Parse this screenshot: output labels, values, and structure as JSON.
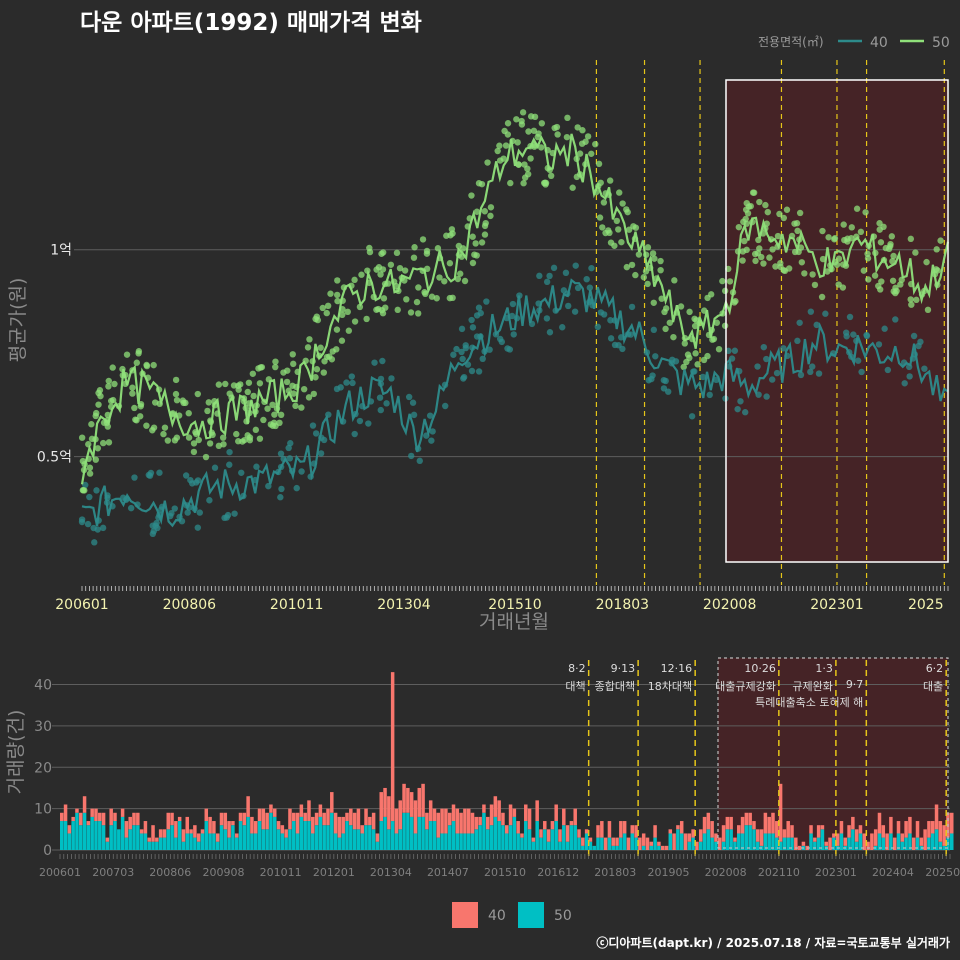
{
  "title": "다운 아파트(1992) 매매가격 변화",
  "footer": "ⓒ디아파트(dapt.kr) / 2025.07.18 / 자료=국토교통부 실거래가",
  "colors": {
    "background": "#2b2b2b",
    "series_40": "#2d8b8b",
    "series_50": "#8fe07a",
    "bar_40": "#f8766d",
    "bar_50": "#00bfc4",
    "policy_line": "#e6c619",
    "highlight_fill": "#4a2226"
  },
  "chart_data": [
    {
      "type": "line",
      "title": "다운 아파트(1992) 매매가격 변화",
      "xlabel": "거래년월",
      "ylabel": "평균가(원)",
      "x_tick_labels": [
        "200601",
        "200806",
        "201011",
        "201304",
        "201510",
        "201803",
        "202008",
        "202301",
        "2025"
      ],
      "y_tick_labels": [
        "0.5억",
        "1억"
      ],
      "y_ticks": [
        0.5,
        1.0
      ],
      "ylim": [
        0.19,
        1.41
      ],
      "xlim": [
        "2006-01",
        "2025-07"
      ],
      "grid": true,
      "legend": {
        "title": "전용면적(㎡)",
        "position": "top-right",
        "entries": [
          "40",
          "50"
        ]
      },
      "series": [
        {
          "name": "40",
          "x": [
            "2006-01",
            "2007-01",
            "2008-01",
            "2009-01",
            "2010-01",
            "2011-01",
            "2011-07",
            "2012-01",
            "2012-07",
            "2013-01",
            "2013-07",
            "2014-01",
            "2014-07",
            "2015-01",
            "2015-07",
            "2016-01",
            "2016-07",
            "2017-01",
            "2017-07",
            "2018-01",
            "2018-07",
            "2019-01",
            "2019-07",
            "2020-01",
            "2020-07",
            "2021-01",
            "2021-07",
            "2022-01",
            "2022-07",
            "2023-01",
            "2023-07",
            "2024-01",
            "2024-07",
            "2025-01",
            "2025-06"
          ],
          "values": [
            0.35,
            0.42,
            0.37,
            0.43,
            0.44,
            0.47,
            0.55,
            0.62,
            0.66,
            0.65,
            0.55,
            0.62,
            0.75,
            0.79,
            0.82,
            0.86,
            0.87,
            0.9,
            0.88,
            0.84,
            0.8,
            0.73,
            0.68,
            0.67,
            0.7,
            0.67,
            0.71,
            0.73,
            0.78,
            0.76,
            0.77,
            0.75,
            0.76,
            0.7,
            0.62
          ]
        },
        {
          "name": "50",
          "x": [
            "2006-01",
            "2006-07",
            "2007-01",
            "2007-07",
            "2008-01",
            "2008-07",
            "2009-01",
            "2009-07",
            "2010-01",
            "2010-07",
            "2011-01",
            "2011-07",
            "2012-01",
            "2012-07",
            "2013-01",
            "2013-07",
            "2014-01",
            "2014-07",
            "2015-01",
            "2015-07",
            "2016-01",
            "2016-07",
            "2017-01",
            "2017-07",
            "2018-01",
            "2018-07",
            "2019-01",
            "2019-07",
            "2020-01",
            "2020-07",
            "2021-01",
            "2021-07",
            "2022-01",
            "2022-07",
            "2023-01",
            "2023-07",
            "2024-01",
            "2024-07",
            "2025-01",
            "2025-06"
          ],
          "values": [
            0.47,
            0.6,
            0.68,
            0.66,
            0.61,
            0.58,
            0.59,
            0.61,
            0.63,
            0.65,
            0.69,
            0.8,
            0.88,
            0.92,
            0.91,
            0.93,
            0.95,
            0.98,
            1.1,
            1.22,
            1.25,
            1.22,
            1.24,
            1.18,
            1.08,
            1.0,
            0.92,
            0.8,
            0.8,
            0.86,
            1.06,
            1.04,
            1.02,
            0.98,
            0.96,
            1.02,
            0.98,
            0.96,
            0.9,
            0.98
          ]
        }
      ]
    },
    {
      "type": "bar",
      "xlabel": "",
      "ylabel": "거래량(건)",
      "x_tick_labels": [
        "200601",
        "200703",
        "200806",
        "200908",
        "201011",
        "201201",
        "201304",
        "201407",
        "201510",
        "201612",
        "201803",
        "201905",
        "202008",
        "202110",
        "202301",
        "202404",
        "202506"
      ],
      "y_tick_labels": [
        "0",
        "10",
        "20",
        "30",
        "40"
      ],
      "ylim": [
        0,
        44
      ],
      "stacked": true,
      "legend": {
        "position": "bottom",
        "entries": [
          "40",
          "50"
        ]
      },
      "series": [
        {
          "name": "40",
          "x": [
            "2006",
            "2007",
            "2008",
            "2009",
            "2010",
            "2011",
            "2012",
            "2013",
            "2014",
            "2015",
            "2016",
            "2017",
            "2018",
            "2019",
            "2020",
            "2021",
            "2022",
            "2023",
            "2024",
            "2025"
          ],
          "values": [
            2,
            2,
            2,
            2,
            3,
            3,
            3,
            6,
            4,
            3,
            3,
            2,
            2,
            2,
            2,
            3,
            2,
            3,
            3,
            4
          ]
        },
        {
          "name": "50",
          "x": [
            "2006",
            "2007",
            "2008",
            "2009",
            "2010",
            "2011",
            "2012",
            "2013",
            "2014",
            "2015",
            "2016",
            "2017",
            "2018",
            "2019",
            "2020",
            "2021",
            "2022",
            "2023",
            "2024",
            "2025"
          ],
          "values": [
            6,
            5,
            4,
            4,
            6,
            6,
            5,
            7,
            6,
            6,
            5,
            3,
            2,
            2,
            3,
            4,
            2,
            2,
            2,
            3
          ]
        }
      ],
      "annotations": [
        {
          "date": "2017-08",
          "label": "8·2 대책"
        },
        {
          "date": "2018-09",
          "label": "9·13 종합대책"
        },
        {
          "date": "2019-12",
          "label": "12·16 18차대책"
        },
        {
          "date": "2021-10",
          "label": "10·26 대출규제강화"
        },
        {
          "date": "2023-01",
          "label": "1·3 규제완화"
        },
        {
          "date": "2023-09",
          "label": "9·7 특례대출축소 토허제 해"
        },
        {
          "date": "2025-06",
          "label": "6·2 대출"
        }
      ]
    }
  ]
}
